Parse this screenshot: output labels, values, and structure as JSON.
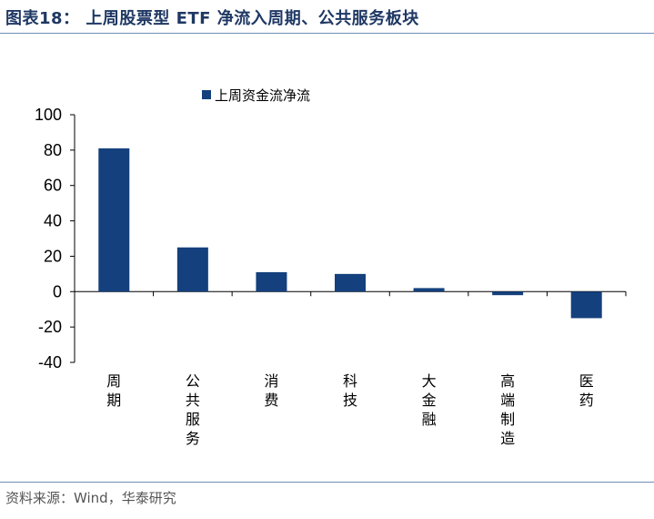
{
  "header": {
    "title": "图表18： 上周股票型 ETF 净流入周期、公共服务板块"
  },
  "footer": {
    "source": "资料来源：Wind，华泰研究"
  },
  "colors": {
    "bar": "#14407d",
    "rule": "#6f8fb8",
    "title": "#1f3864"
  },
  "chart_data": {
    "type": "bar",
    "title": "",
    "xlabel": "",
    "ylabel": "",
    "ylim": [
      -40,
      100
    ],
    "yticks": [
      100,
      80,
      60,
      40,
      20,
      0,
      -20,
      -40
    ],
    "grid": false,
    "legend_position": "top-left",
    "categories": [
      "周期",
      "公共服务",
      "消费",
      "科技",
      "大金融",
      "高端制造",
      "医药"
    ],
    "series": [
      {
        "name": "上周资金流净流",
        "values": [
          81,
          25,
          11,
          10,
          2,
          -2,
          -15
        ]
      }
    ]
  }
}
